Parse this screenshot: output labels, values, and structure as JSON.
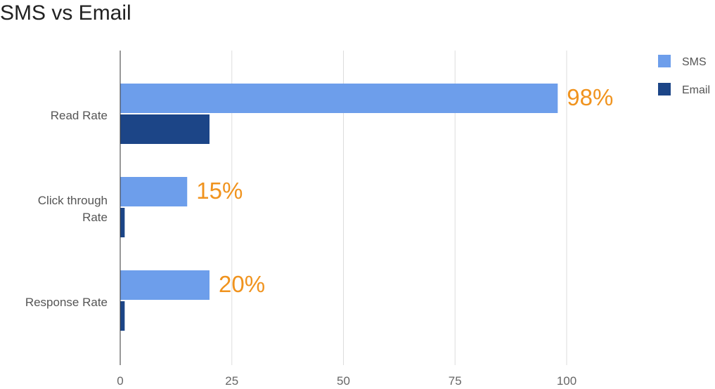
{
  "chart_data": {
    "type": "bar",
    "orientation": "horizontal",
    "title": "SMS vs Email",
    "categories": [
      [
        "Read Rate"
      ],
      [
        "Click through",
        "Rate"
      ],
      [
        "Response Rate"
      ]
    ],
    "series": [
      {
        "name": "SMS",
        "values": [
          98,
          15,
          20
        ],
        "color": "#6d9eeb",
        "labels": [
          "98%",
          "15%",
          "20%"
        ]
      },
      {
        "name": "Email",
        "values": [
          20,
          1,
          1
        ],
        "color": "#1c4587",
        "labels": []
      }
    ],
    "xlim": [
      0,
      100
    ],
    "xticks": [
      0,
      25,
      50,
      75,
      100
    ],
    "grid": true,
    "legend": "top-right",
    "label_color": "#f0931e"
  }
}
